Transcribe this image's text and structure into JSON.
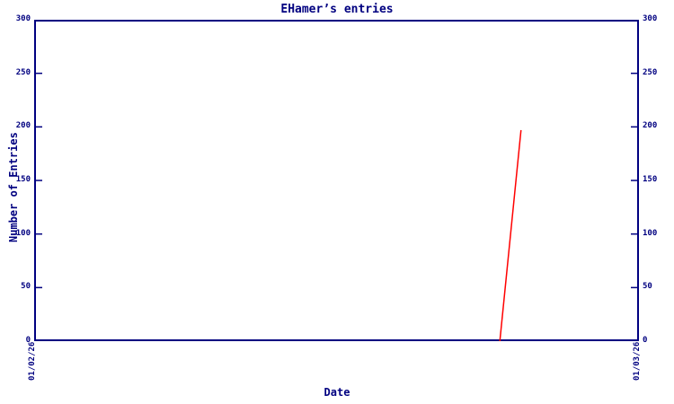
{
  "colors": {
    "axis": "#000080",
    "text": "#000080",
    "series_line": "#ff0000",
    "background": "#ffffff"
  },
  "chart_data": {
    "type": "line",
    "title": "EHamer’s entries",
    "xlabel": "Date",
    "ylabel": "Number of Entries",
    "ylim": [
      0,
      300
    ],
    "yticks": [
      0,
      50,
      100,
      150,
      200,
      250,
      300
    ],
    "yticks_sides": [
      "left",
      "right"
    ],
    "xticks": [
      {
        "label": "01/02/26",
        "x_fraction": 0
      },
      {
        "label": "01/03/26",
        "x_fraction": 1
      }
    ],
    "grid": false,
    "legend": null,
    "series": [
      {
        "name": "entries",
        "color": "#ff0000",
        "points": [
          {
            "x_fraction": 0.77,
            "y": 0
          },
          {
            "x_fraction": 0.805,
            "y": 197
          }
        ]
      }
    ]
  }
}
